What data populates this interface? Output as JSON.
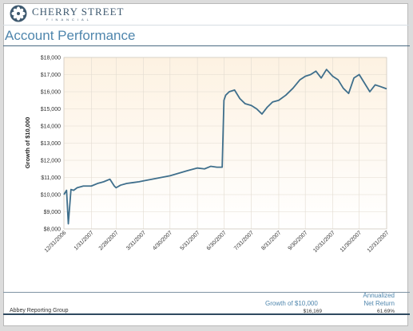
{
  "brand": {
    "name": "CHERRY STREET",
    "tagline": "FINANCIAL",
    "color": "#3f5a70"
  },
  "page_title": "Account Performance",
  "chart_data": {
    "type": "line",
    "title": "",
    "xlabel": "",
    "ylabel": "Growth of $10,000",
    "ylim": [
      8000,
      18000
    ],
    "yticks": [
      8000,
      9000,
      10000,
      11000,
      12000,
      13000,
      14000,
      15000,
      16000,
      17000,
      18000
    ],
    "ytick_labels": [
      "$8,000",
      "$9,000",
      "$10,000",
      "$11,000",
      "$12,000",
      "$13,000",
      "$14,000",
      "$15,000",
      "$16,000",
      "$17,000",
      "$18,000"
    ],
    "xlim": [
      "12/31/2006",
      "12/31/2007"
    ],
    "xticks": [
      "12/31/2006",
      "1/31/2007",
      "2/28/2007",
      "3/31/2007",
      "4/30/2007",
      "5/31/2007",
      "6/30/2007",
      "7/31/2007",
      "8/31/2007",
      "9/30/2007",
      "10/31/2007",
      "11/30/2007",
      "12/31/2007"
    ],
    "grid": true,
    "line_color": "#3f6f8c",
    "background_gradient": [
      "#fdf2e2",
      "#ffffff"
    ],
    "series": [
      {
        "x": [
          "12/31/2006",
          "1/3/2007",
          "1/5/2007",
          "1/8/2007",
          "1/11/2007",
          "1/15/2007",
          "1/22/2007",
          "1/31/2007",
          "2/7/2007",
          "2/14/2007",
          "2/21/2007",
          "2/26/2007",
          "2/28/2007",
          "3/5/2007",
          "3/12/2007",
          "3/19/2007",
          "3/26/2007",
          "3/31/2007",
          "4/10/2007",
          "4/20/2007",
          "4/30/2007",
          "5/10/2007",
          "5/20/2007",
          "5/31/2007",
          "6/8/2007",
          "6/15/2007",
          "6/22/2007",
          "6/28/2007",
          "6/30/2007",
          "7/2/2007",
          "7/6/2007",
          "7/12/2007",
          "7/18/2007",
          "7/24/2007",
          "7/31/2007",
          "8/6/2007",
          "8/12/2007",
          "8/18/2007",
          "8/24/2007",
          "8/31/2007",
          "9/8/2007",
          "9/16/2007",
          "9/24/2007",
          "9/30/2007",
          "10/6/2007",
          "10/12/2007",
          "10/18/2007",
          "10/24/2007",
          "10/31/2007",
          "11/6/2007",
          "11/12/2007",
          "11/18/2007",
          "11/24/2007",
          "11/30/2007",
          "12/6/2007",
          "12/12/2007",
          "12/18/2007",
          "12/24/2007",
          "12/31/2007"
        ],
        "y": [
          10000,
          10250,
          8300,
          10300,
          10250,
          10400,
          10500,
          10500,
          10650,
          10750,
          10900,
          10500,
          10400,
          10550,
          10650,
          10700,
          10750,
          10800,
          10900,
          11000,
          11100,
          11250,
          11400,
          11550,
          11500,
          11650,
          11600,
          11600,
          15500,
          15800,
          16000,
          16100,
          15600,
          15300,
          15200,
          15000,
          14700,
          15100,
          15400,
          15500,
          15800,
          16200,
          16700,
          16900,
          17000,
          17200,
          16800,
          17300,
          16900,
          16700,
          16200,
          15900,
          16800,
          17000,
          16500,
          16000,
          16400,
          16300,
          16169
        ]
      }
    ]
  },
  "summary": {
    "growth_label": "Growth of $10,000",
    "growth_value": "$16,169",
    "return_label_line1": "Annualized",
    "return_label_line2": "Net Return",
    "return_value": "61.69%"
  },
  "footer": {
    "company": "Abbey Reporting Group"
  }
}
